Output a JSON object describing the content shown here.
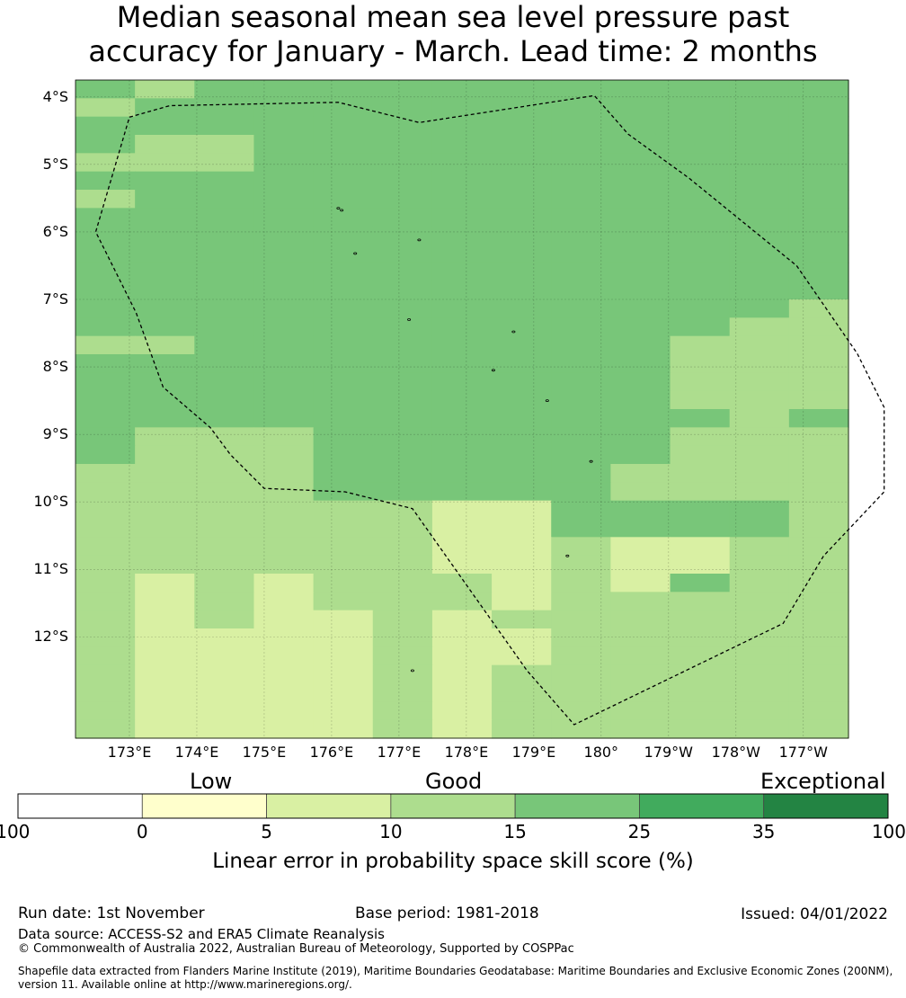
{
  "title": {
    "line1": "Median seasonal mean sea level pressure past",
    "line2": "accuracy for January - March. Lead time: 2 months"
  },
  "map": {
    "lat_labels": [
      "4°S",
      "5°S",
      "6°S",
      "7°S",
      "8°S",
      "9°S",
      "10°S",
      "11°S",
      "12°S"
    ],
    "lon_labels": [
      "173°E",
      "174°E",
      "175°E",
      "176°E",
      "177°E",
      "178°E",
      "179°E",
      "180°",
      "179°W",
      "178°W",
      "177°W"
    ],
    "grid_colors": [
      "#f7fcf5",
      "#ffffcc",
      "#d9f0a3",
      "#addd8e",
      "#78c679",
      "#41ab5d",
      "#238443"
    ],
    "grid_rows": [
      "4344444444444",
      "3444444444444",
      "4444444444444",
      "4334444444444",
      "3334444444444",
      "4444444444444",
      "3444444444444",
      "4444444444444",
      "4444444444444",
      "4444444444444",
      "4444444444444",
      "4444444444444",
      "4444444444443",
      "4444444444433",
      "3344444444333",
      "4444444444333",
      "4444444444333",
      "4444444444333",
      "4444444444434",
      "4333444444333",
      "4333444444333",
      "3333444443333",
      "3333444443333",
      "3333332244443",
      "3333332244443",
      "3333332232233",
      "3333332232233",
      "3232333232433",
      "3232333233333",
      "3232232333333",
      "3222232233333",
      "3222232233333",
      "3222232333333",
      "3222232333333",
      "3222232333333",
      "3222232333333"
    ],
    "eez_boundary": [
      [
        4.3,
        173.0
      ],
      [
        4.13,
        173.6
      ],
      [
        4.08,
        176.1
      ],
      [
        4.38,
        177.3
      ],
      [
        3.98,
        179.9
      ],
      [
        4.55,
        180.4
      ],
      [
        5.2,
        181.3
      ],
      [
        6.5,
        182.9
      ],
      [
        7.8,
        183.8
      ],
      [
        8.6,
        184.2
      ],
      [
        9.85,
        184.2
      ],
      [
        10.8,
        183.3
      ],
      [
        11.8,
        182.7
      ],
      [
        13.3,
        179.6
      ],
      [
        12.5,
        178.9
      ],
      [
        10.1,
        177.2
      ],
      [
        9.85,
        176.2
      ],
      [
        9.8,
        175.0
      ],
      [
        9.3,
        174.5
      ],
      [
        8.9,
        174.2
      ],
      [
        8.3,
        173.5
      ],
      [
        7.2,
        173.1
      ],
      [
        6.0,
        172.5
      ],
      [
        4.3,
        173.0
      ]
    ]
  },
  "legend": {
    "categories": [
      {
        "label": "Low"
      },
      {
        "label": "Good"
      },
      {
        "label": "Exceptional"
      }
    ],
    "ticks": [
      "-100",
      "0",
      "5",
      "10",
      "15",
      "25",
      "35",
      "100"
    ],
    "colors": [
      "#ffffff",
      "#ffffcc",
      "#d9f0a3",
      "#addd8e",
      "#78c679",
      "#41ab5d",
      "#238443"
    ],
    "axis_label": "Linear error in probability space skill score (%)"
  },
  "footer": {
    "run_date": "Run date: 1st November",
    "base_period": "Base period: 1981-2018",
    "issued": "Issued: 04/01/2022",
    "data_source": "Data source: ACCESS-S2 and ERA5 Climate Reanalysis",
    "copyright": "© Commonwealth of Australia 2022, Australian Bureau of Meteorology, Supported by COSPPac",
    "shapefile_line1": "Shapefile data extracted from Flanders Marine Institute (2019), Maritime Boundaries Geodatabase: Maritime Boundaries and Exclusive Economic Zones (200NM),",
    "shapefile_line2": "version 11. Available online at http://www.marineregions.org/."
  }
}
